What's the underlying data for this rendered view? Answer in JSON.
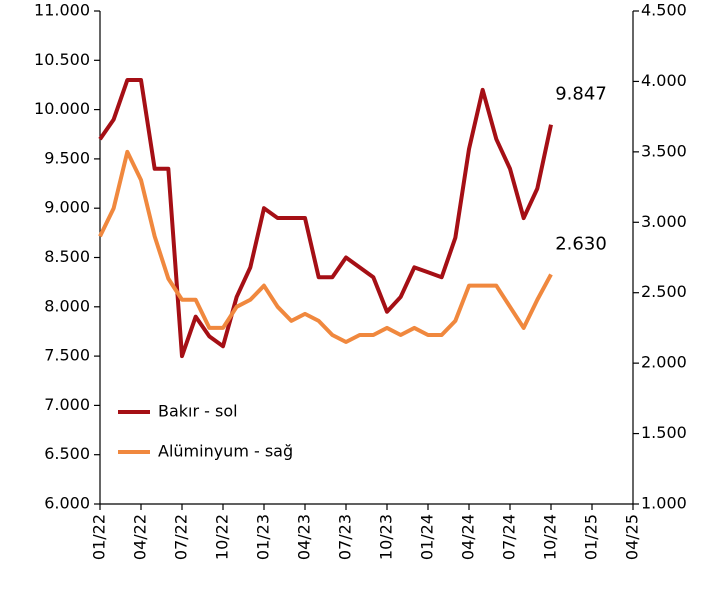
{
  "chart_data": {
    "type": "line",
    "x": [
      "01/22",
      "02/22",
      "03/22",
      "04/22",
      "05/22",
      "06/22",
      "07/22",
      "08/22",
      "09/22",
      "10/22",
      "11/22",
      "12/22",
      "01/23",
      "02/23",
      "03/23",
      "04/23",
      "05/23",
      "06/23",
      "07/23",
      "08/23",
      "09/23",
      "10/23",
      "11/23",
      "12/23",
      "01/24",
      "02/24",
      "03/24",
      "04/24",
      "05/24",
      "06/24",
      "07/24",
      "08/24",
      "09/24",
      "10/24"
    ],
    "series": [
      {
        "name": "Bakır - sol",
        "color": "#a50f15",
        "axis": "y",
        "values": [
          9700,
          9900,
          10300,
          10300,
          9400,
          9400,
          7500,
          7900,
          7700,
          7600,
          8100,
          8400,
          9000,
          8900,
          8900,
          8900,
          8300,
          8300,
          8500,
          8400,
          8300,
          7950,
          8100,
          8400,
          8350,
          8300,
          8700,
          9600,
          10200,
          9700,
          9400,
          8900,
          9200,
          9847
        ],
        "value_labels": [
          null,
          null,
          null,
          null,
          null,
          null,
          null,
          null,
          null,
          null,
          null,
          null,
          null,
          null,
          null,
          null,
          null,
          null,
          null,
          null,
          null,
          null,
          null,
          null,
          null,
          null,
          null,
          null,
          null,
          null,
          null,
          null,
          null,
          "9.847"
        ]
      },
      {
        "name": "Alüminyum - sağ",
        "color": "#f0883e",
        "axis": "y2",
        "values": [
          2900,
          3100,
          3500,
          3300,
          2900,
          2600,
          2450,
          2450,
          2250,
          2250,
          2400,
          2450,
          2550,
          2400,
          2300,
          2350,
          2300,
          2200,
          2150,
          2200,
          2200,
          2250,
          2200,
          2250,
          2200,
          2200,
          2300,
          2550,
          2550,
          2550,
          2400,
          2250,
          2450,
          2630
        ],
        "value_labels": [
          null,
          null,
          null,
          null,
          null,
          null,
          null,
          null,
          null,
          null,
          null,
          null,
          null,
          null,
          null,
          null,
          null,
          null,
          null,
          null,
          null,
          null,
          null,
          null,
          null,
          null,
          null,
          null,
          null,
          null,
          null,
          null,
          null,
          "2.630"
        ]
      }
    ],
    "xticks": [
      "01/22",
      "04/22",
      "07/22",
      "10/22",
      "01/23",
      "04/23",
      "07/23",
      "10/23",
      "01/24",
      "04/24",
      "07/24",
      "10/24",
      "01/25",
      "04/25"
    ],
    "ylim": [
      6000,
      11000
    ],
    "yticks": [
      {
        "value": 6000,
        "label": "6.000"
      },
      {
        "value": 6500,
        "label": "6.500"
      },
      {
        "value": 7000,
        "label": "7.000"
      },
      {
        "value": 7500,
        "label": "7.500"
      },
      {
        "value": 8000,
        "label": "8.000"
      },
      {
        "value": 8500,
        "label": "8.500"
      },
      {
        "value": 9000,
        "label": "9.000"
      },
      {
        "value": 9500,
        "label": "9.500"
      },
      {
        "value": 10000,
        "label": "10.000"
      },
      {
        "value": 10500,
        "label": "10.500"
      },
      {
        "value": 11000,
        "label": "11.000"
      }
    ],
    "y2lim": [
      1000,
      4500
    ],
    "y2ticks": [
      {
        "value": 1000,
        "label": "1.000"
      },
      {
        "value": 1500,
        "label": "1.500"
      },
      {
        "value": 2000,
        "label": "2.000"
      },
      {
        "value": 2500,
        "label": "2.500"
      },
      {
        "value": 3000,
        "label": "3.000"
      },
      {
        "value": 3500,
        "label": "3.500"
      },
      {
        "value": 4000,
        "label": "4.000"
      },
      {
        "value": 4500,
        "label": "4.500"
      }
    ],
    "grid": false,
    "legend": "lower left"
  }
}
